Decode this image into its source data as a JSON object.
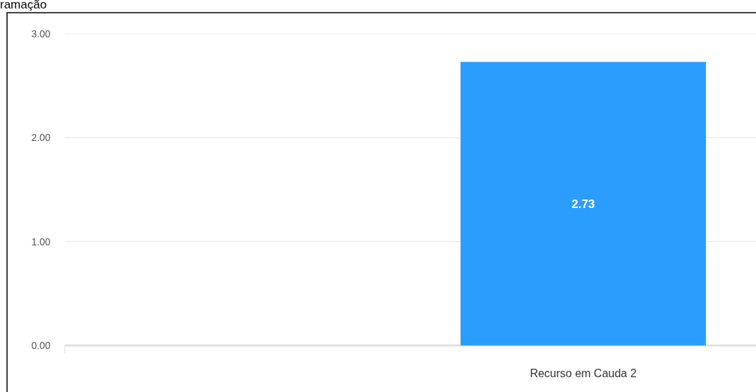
{
  "chart_data": {
    "type": "bar",
    "title": "ramação",
    "categories": [
      null,
      "Recurso em Cauda 2"
    ],
    "values": [
      null,
      2.73
    ],
    "color": "#2b9dff",
    "ylim": [
      0,
      3
    ],
    "yticks": [
      {
        "value": 0,
        "label": "0.00"
      },
      {
        "value": 1,
        "label": "1.00"
      },
      {
        "value": 2,
        "label": "2.00"
      },
      {
        "value": 3,
        "label": "3.00"
      }
    ],
    "grid": "y",
    "data_labels": true
  }
}
